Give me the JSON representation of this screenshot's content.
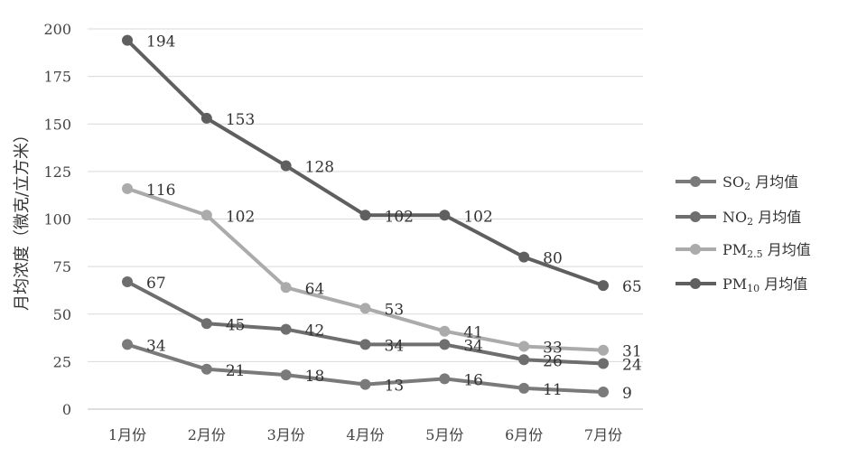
{
  "chart_data": {
    "type": "line",
    "ylabel": "月均浓度（微克/立方米）",
    "xlabel": "",
    "title": "",
    "categories": [
      "1月份",
      "2月份",
      "3月份",
      "4月份",
      "5月份",
      "6月份",
      "7月份"
    ],
    "ylim": [
      0,
      200
    ],
    "yticks": [
      0,
      25,
      50,
      75,
      100,
      125,
      150,
      175,
      200
    ],
    "grid": true,
    "legend": "right",
    "series": [
      {
        "name": "SO₂ 月均值",
        "legend_main": "SO",
        "legend_sub": "2",
        "legend_tail": " 月均值",
        "color": "#7a7a7a",
        "values": [
          34,
          21,
          18,
          13,
          16,
          11,
          9
        ]
      },
      {
        "name": "NO₂ 月均值",
        "legend_main": "NO",
        "legend_sub": "2",
        "legend_tail": " 月均值",
        "color": "#6e6e6e",
        "values": [
          67,
          45,
          42,
          34,
          34,
          26,
          24
        ]
      },
      {
        "name": "PM₂.₅ 月均值",
        "legend_main": "PM",
        "legend_sub": "2.5",
        "legend_tail": "  月均值",
        "color": "#ababab",
        "values": [
          116,
          102,
          64,
          53,
          41,
          33,
          31
        ]
      },
      {
        "name": "PM₁₀ 月均值",
        "legend_main": "PM",
        "legend_sub": "10",
        "legend_tail": "  月均值",
        "color": "#5f5f5f",
        "values": [
          194,
          153,
          128,
          102,
          102,
          80,
          65
        ]
      }
    ]
  }
}
